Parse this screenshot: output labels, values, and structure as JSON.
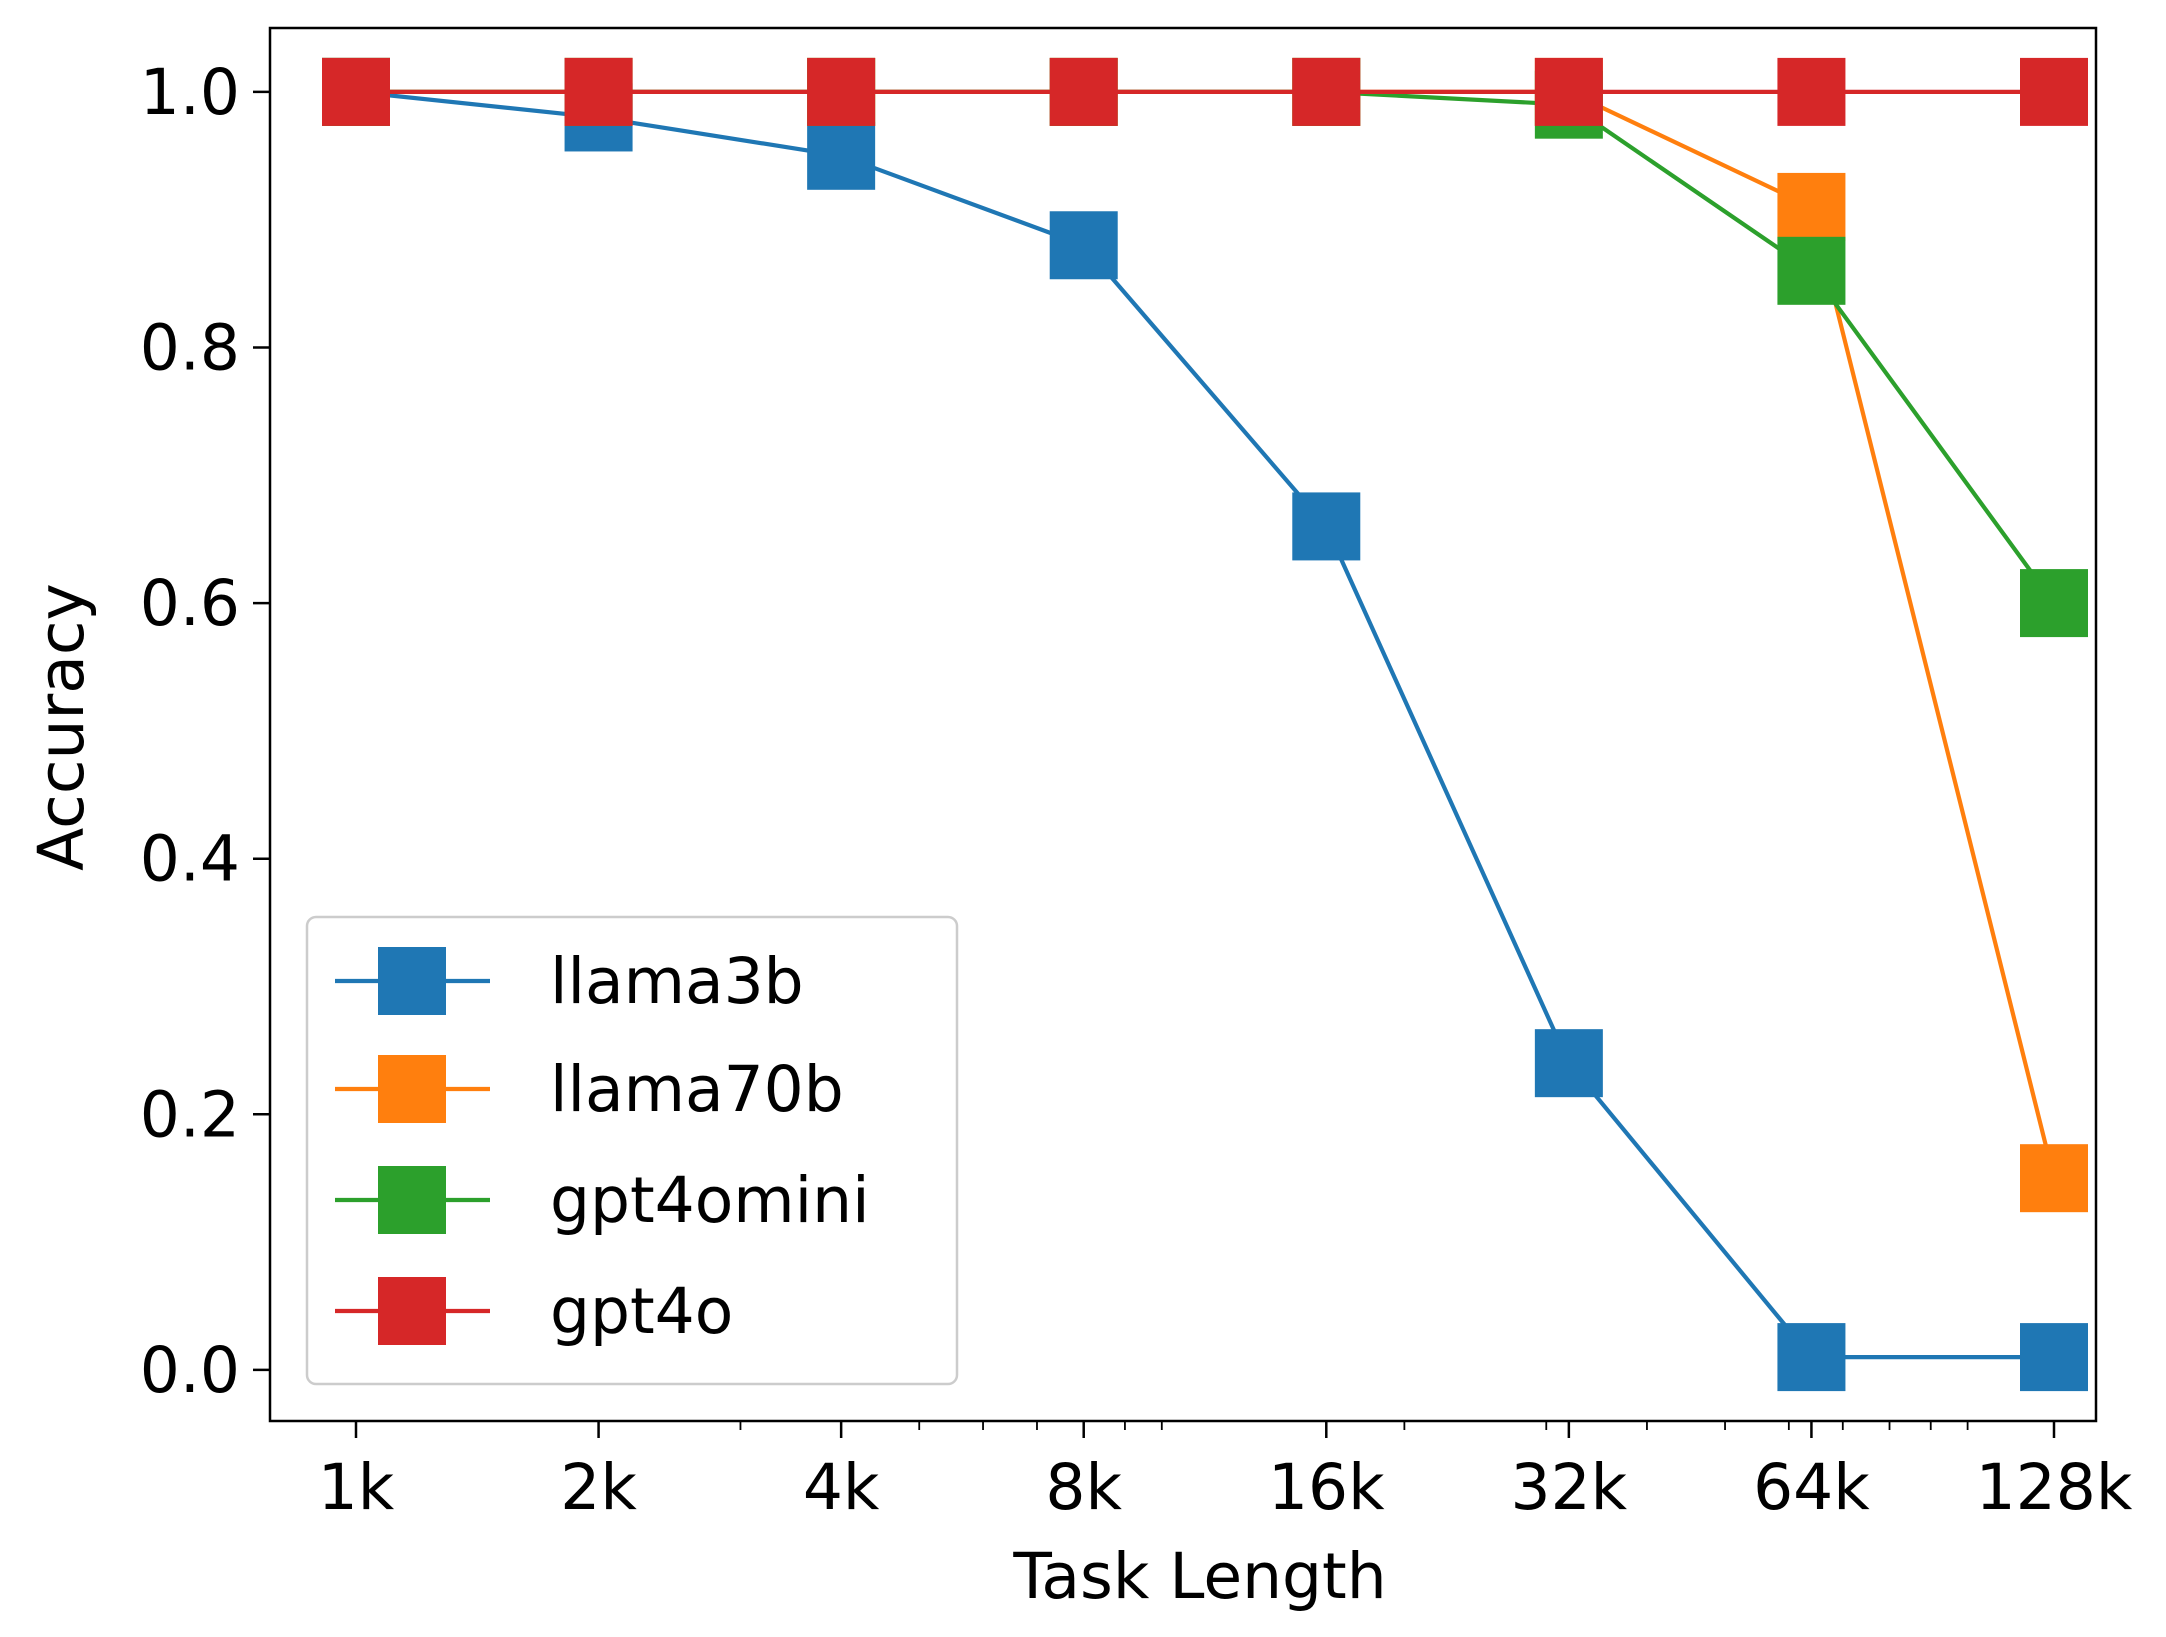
{
  "chart_data": {
    "type": "line",
    "title": "",
    "xlabel": "Task Length",
    "ylabel": "Accuracy",
    "x_scale": "log2",
    "categories": [
      "1k",
      "2k",
      "4k",
      "8k",
      "16k",
      "32k",
      "64k",
      "128k"
    ],
    "x": [
      1,
      2,
      4,
      8,
      16,
      32,
      64,
      128
    ],
    "ylim": [
      -0.04,
      1.05
    ],
    "yticks": [
      0.0,
      0.2,
      0.4,
      0.6,
      0.8,
      1.0
    ],
    "ytick_labels": [
      "0.0",
      "0.2",
      "0.4",
      "0.6",
      "0.8",
      "1.0"
    ],
    "grid": false,
    "legend_position": "bottom-left",
    "series": [
      {
        "name": "llama3b",
        "color": "#1f77b4",
        "values": [
          1.0,
          0.98,
          0.95,
          0.88,
          0.66,
          0.24,
          0.01,
          0.01
        ]
      },
      {
        "name": "llama70b",
        "color": "#ff7f0e",
        "values": [
          1.0,
          1.0,
          1.0,
          1.0,
          1.0,
          1.0,
          0.91,
          0.15
        ]
      },
      {
        "name": "gpt4omini",
        "color": "#2ca02c",
        "values": [
          1.0,
          1.0,
          1.0,
          1.0,
          1.0,
          0.99,
          0.86,
          0.6
        ]
      },
      {
        "name": "gpt4o",
        "color": "#d62728",
        "values": [
          1.0,
          1.0,
          1.0,
          1.0,
          1.0,
          1.0,
          1.0,
          1.0
        ]
      }
    ]
  }
}
